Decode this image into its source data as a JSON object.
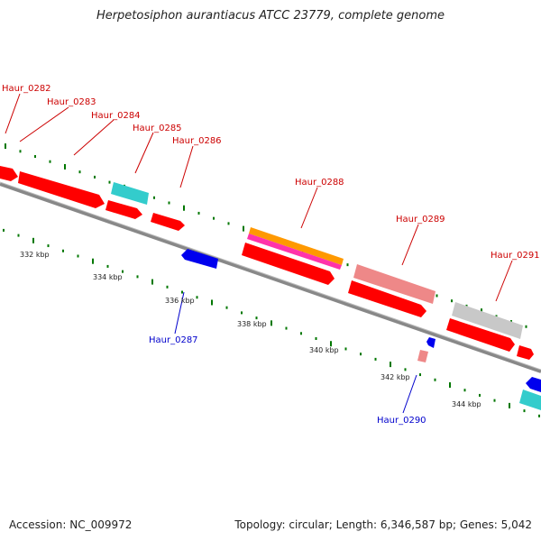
{
  "title": "Herpetosiphon aurantiacus ATCC 23779, complete genome",
  "footer": {
    "accession": "Accession: NC_009972",
    "summary": "Topology: circular; Length: 6,346,587 bp; Genes: 5,042"
  },
  "scale_labels": [
    "332 kbp",
    "334 kbp",
    "336 kbp",
    "338 kbp",
    "340 kbp",
    "342 kbp",
    "344 kbp"
  ],
  "genes_forward": [
    "Haur_0282",
    "Haur_0283",
    "Haur_0284",
    "Haur_0285",
    "Haur_0286",
    "Haur_0288",
    "Haur_0289",
    "Haur_0291"
  ],
  "genes_reverse": [
    "Haur_0287",
    "Haur_0290"
  ],
  "colors": {
    "forward_cds": "#ff0000",
    "reverse_cds": "#0000ee",
    "forward_label": "#cc0000",
    "reverse_label": "#0000cc",
    "cyan_feature": "#33cccc",
    "orange_feature": "#ff9900",
    "magenta_feature": "#ff33aa",
    "pink_feature": "#ee8888",
    "gray_feature": "#c8c8c8",
    "backbone": "#888888",
    "tick": "#007700"
  }
}
